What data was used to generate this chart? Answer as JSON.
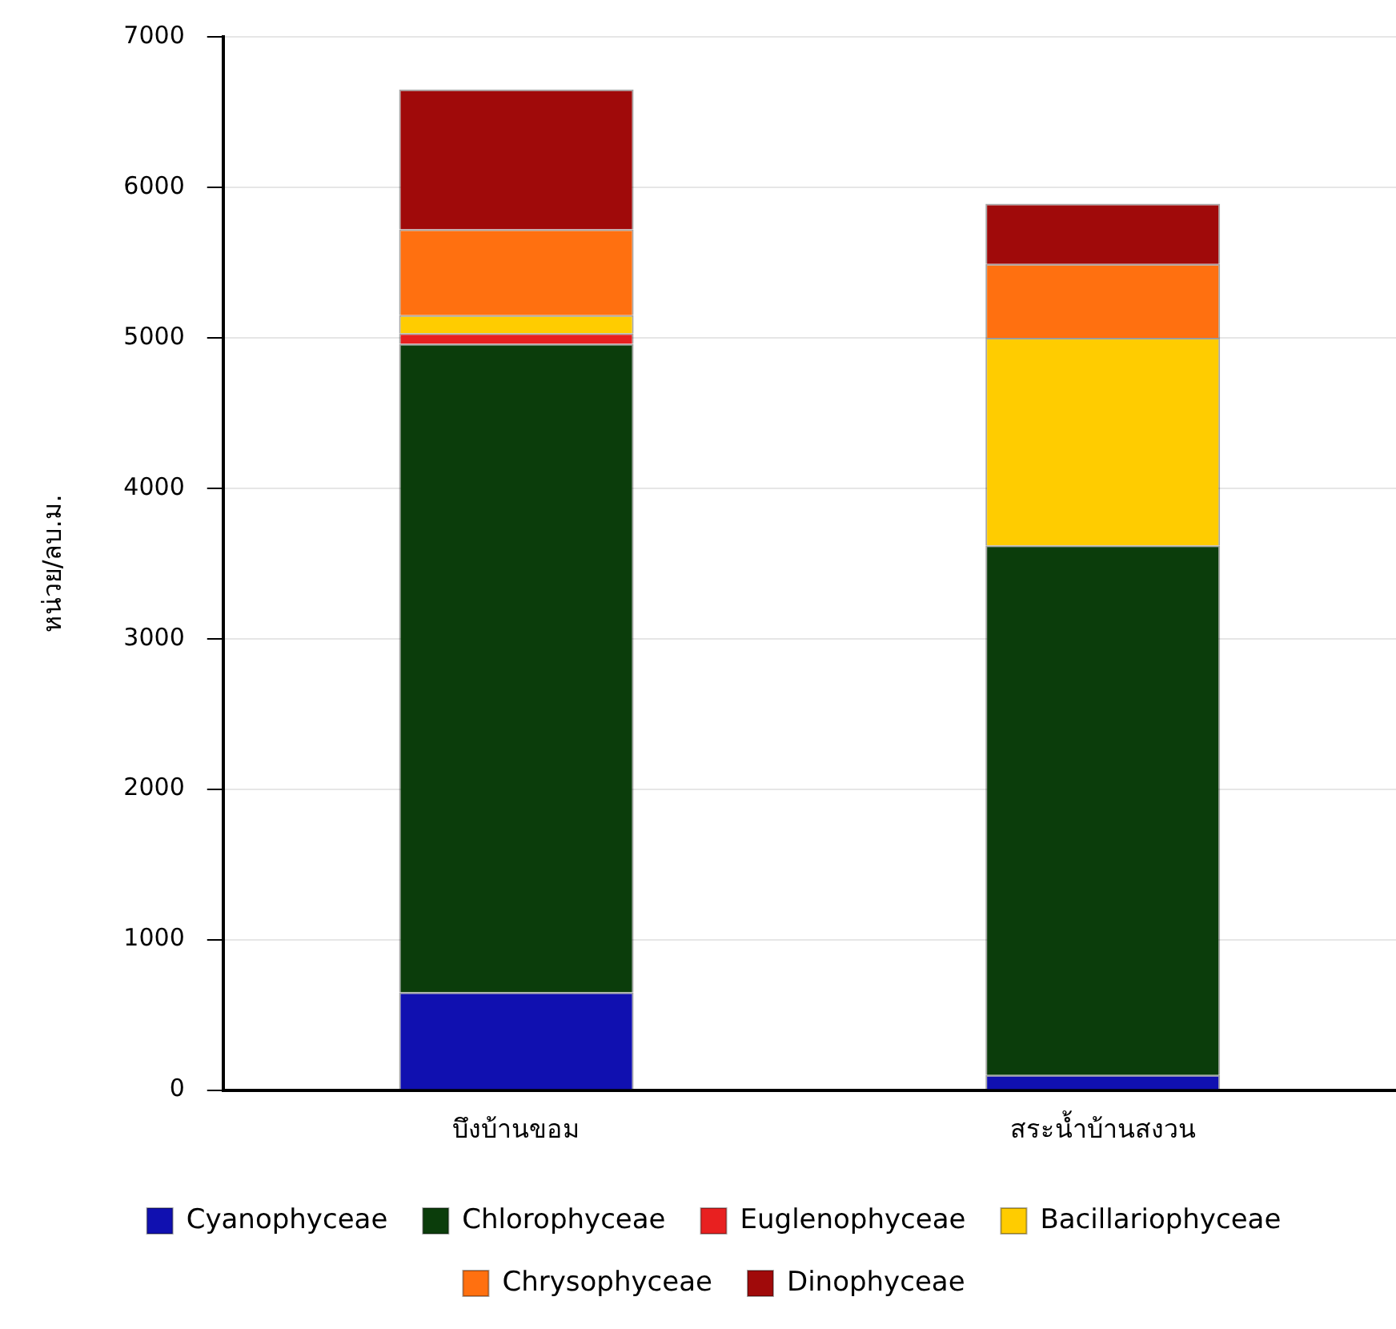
{
  "chart_data": {
    "type": "bar",
    "stacked": true,
    "ylabel": "หน่วย/ลบ.ม.",
    "categories": [
      "บึงบ้านขอม",
      "สระน้ำบ้านสงวน"
    ],
    "series": [
      {
        "name": "Cyanophyceae",
        "color": "#1010b0",
        "values": [
          650,
          100
        ]
      },
      {
        "name": "Chlorophyceae",
        "color": "#0b3d0b",
        "values": [
          4310,
          3520
        ]
      },
      {
        "name": "Euglenophyceae",
        "color": "#e82020",
        "values": [
          70,
          0
        ]
      },
      {
        "name": "Bacillariophyceae",
        "color": "#ffcc00",
        "values": [
          120,
          1380
        ]
      },
      {
        "name": "Chrysophyceae",
        "color": "#ff7010",
        "values": [
          570,
          490
        ]
      },
      {
        "name": "Dinophyceae",
        "color": "#a00a0a",
        "values": [
          930,
          400
        ]
      }
    ],
    "ylim": [
      0,
      7000
    ],
    "yticks": [
      0,
      1000,
      2000,
      3000,
      4000,
      5000,
      6000,
      7000
    ],
    "grid": "y",
    "legend": "bottom"
  }
}
